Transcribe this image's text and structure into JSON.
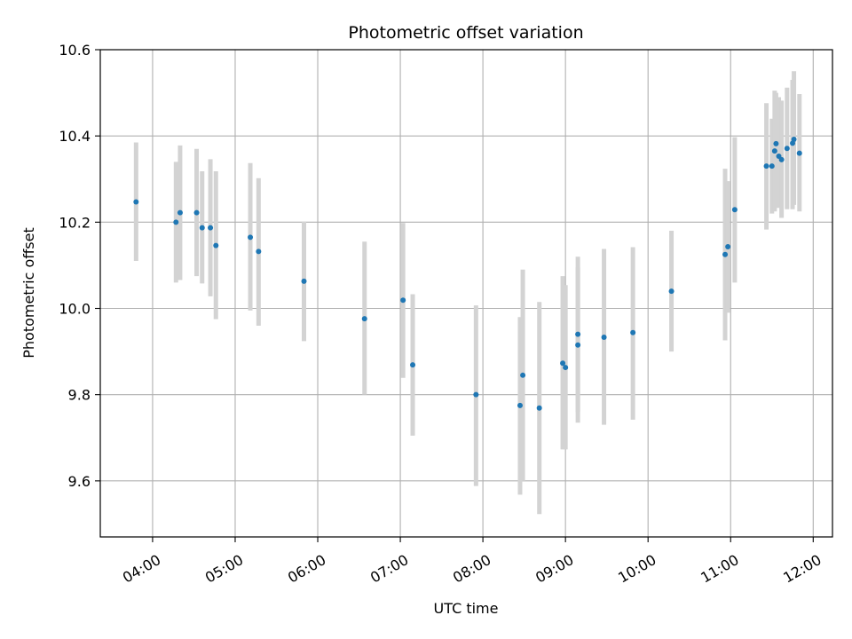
{
  "chart_data": {
    "type": "scatter",
    "title": "Photometric offset variation",
    "xlabel": "UTC time",
    "ylabel": "Photometric offset",
    "xlim": [
      "03:22",
      "12:14"
    ],
    "ylim": [
      9.47,
      10.6
    ],
    "x_ticks": [
      "04:00",
      "05:00",
      "06:00",
      "07:00",
      "08:00",
      "09:00",
      "10:00",
      "11:00",
      "12:00"
    ],
    "y_ticks": [
      9.6,
      9.8,
      10.0,
      10.2,
      10.4,
      10.6
    ],
    "grid": true,
    "marker_color": "#1f77b4",
    "errorbar_color": "#d3d3d3",
    "points": [
      {
        "t": "03:48",
        "y": 10.247,
        "lo": 10.11,
        "hi": 10.385
      },
      {
        "t": "04:17",
        "y": 10.2,
        "lo": 10.06,
        "hi": 10.34
      },
      {
        "t": "04:20",
        "y": 10.222,
        "lo": 10.066,
        "hi": 10.378
      },
      {
        "t": "04:32",
        "y": 10.222,
        "lo": 10.075,
        "hi": 10.37
      },
      {
        "t": "04:36",
        "y": 10.187,
        "lo": 10.058,
        "hi": 10.318
      },
      {
        "t": "04:42",
        "y": 10.187,
        "lo": 10.028,
        "hi": 10.346
      },
      {
        "t": "04:46",
        "y": 10.146,
        "lo": 9.975,
        "hi": 10.318
      },
      {
        "t": "05:11",
        "y": 10.165,
        "lo": 9.995,
        "hi": 10.337
      },
      {
        "t": "05:17",
        "y": 10.132,
        "lo": 9.96,
        "hi": 10.302
      },
      {
        "t": "05:50",
        "y": 10.063,
        "lo": 9.924,
        "hi": 10.201
      },
      {
        "t": "06:34",
        "y": 9.976,
        "lo": 9.8,
        "hi": 10.155
      },
      {
        "t": "07:02",
        "y": 10.019,
        "lo": 9.839,
        "hi": 10.198
      },
      {
        "t": "07:09",
        "y": 9.869,
        "lo": 9.705,
        "hi": 10.033
      },
      {
        "t": "07:55",
        "y": 9.8,
        "lo": 9.588,
        "hi": 10.007
      },
      {
        "t": "08:27",
        "y": 9.775,
        "lo": 9.568,
        "hi": 9.98
      },
      {
        "t": "08:29",
        "y": 9.845,
        "lo": 9.6,
        "hi": 10.09
      },
      {
        "t": "08:41",
        "y": 9.769,
        "lo": 9.523,
        "hi": 10.015
      },
      {
        "t": "08:58",
        "y": 9.873,
        "lo": 9.673,
        "hi": 10.075
      },
      {
        "t": "09:00",
        "y": 9.863,
        "lo": 9.673,
        "hi": 10.054
      },
      {
        "t": "09:09",
        "y": 9.94,
        "lo": 9.76,
        "hi": 10.12
      },
      {
        "t": "09:09",
        "y": 9.915,
        "lo": 9.735,
        "hi": 10.095
      },
      {
        "t": "09:28",
        "y": 9.933,
        "lo": 9.73,
        "hi": 10.138
      },
      {
        "t": "09:49",
        "y": 9.944,
        "lo": 9.742,
        "hi": 10.142
      },
      {
        "t": "10:17",
        "y": 10.04,
        "lo": 9.9,
        "hi": 10.18
      },
      {
        "t": "10:56",
        "y": 10.125,
        "lo": 9.926,
        "hi": 10.324
      },
      {
        "t": "10:58",
        "y": 10.143,
        "lo": 9.99,
        "hi": 10.295
      },
      {
        "t": "11:03",
        "y": 10.229,
        "lo": 10.06,
        "hi": 10.397
      },
      {
        "t": "11:26",
        "y": 10.33,
        "lo": 10.183,
        "hi": 10.476
      },
      {
        "t": "11:30",
        "y": 10.33,
        "lo": 10.22,
        "hi": 10.44
      },
      {
        "t": "11:32",
        "y": 10.365,
        "lo": 10.225,
        "hi": 10.505
      },
      {
        "t": "11:33",
        "y": 10.382,
        "lo": 10.265,
        "hi": 10.5
      },
      {
        "t": "11:35",
        "y": 10.353,
        "lo": 10.233,
        "hi": 10.49
      },
      {
        "t": "11:37",
        "y": 10.345,
        "lo": 10.21,
        "hi": 10.482
      },
      {
        "t": "11:41",
        "y": 10.371,
        "lo": 10.23,
        "hi": 10.512
      },
      {
        "t": "11:45",
        "y": 10.383,
        "lo": 10.23,
        "hi": 10.53
      },
      {
        "t": "11:46",
        "y": 10.392,
        "lo": 10.24,
        "hi": 10.55
      },
      {
        "t": "11:50",
        "y": 10.36,
        "lo": 10.225,
        "hi": 10.497
      }
    ]
  }
}
